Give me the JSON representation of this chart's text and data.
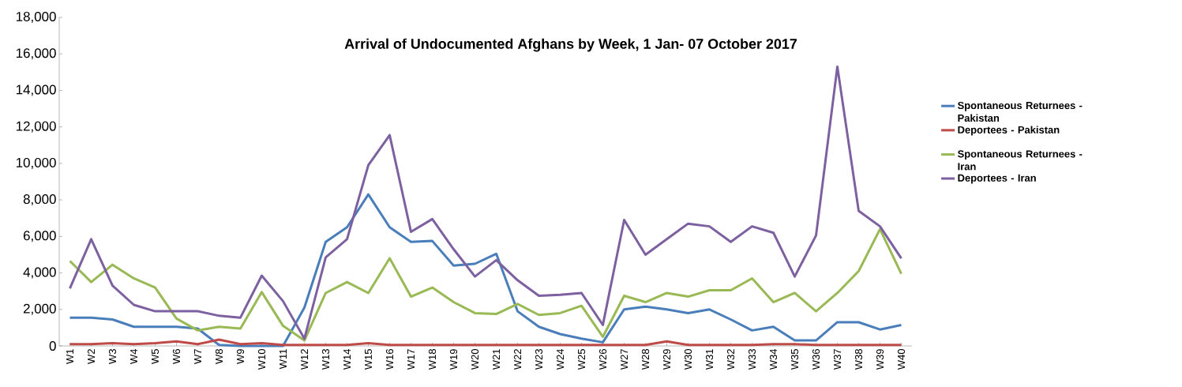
{
  "chart_data": {
    "type": "line",
    "title": "Arrival of Undocumented  Afghans by Week, 1 Jan- 07 October  2017",
    "categories": [
      "W1",
      "W2",
      "W3",
      "W4",
      "W5",
      "W6",
      "W7",
      "W8",
      "W9",
      "W10",
      "W11",
      "W12",
      "W13",
      "W14",
      "W15",
      "W16",
      "W17",
      "W18",
      "W19",
      "W20",
      "W21",
      "W22",
      "W23",
      "W24",
      "W25",
      "W26",
      "W27",
      "W28",
      "W29",
      "W30",
      "W31",
      "W32",
      "W33",
      "W34",
      "W35",
      "W36",
      "W37",
      "W38",
      "W39",
      "W40"
    ],
    "series": [
      {
        "name": "Spontaneous Returnees - Pakistan",
        "color": "#4a7ebb",
        "values": [
          1550,
          1550,
          1450,
          1050,
          1050,
          1050,
          950,
          50,
          0,
          0,
          0,
          2100,
          5700,
          6500,
          8300,
          6500,
          5700,
          5750,
          4400,
          4500,
          5050,
          1900,
          1050,
          650,
          400,
          200,
          2000,
          2150,
          2000,
          1800,
          2000,
          1450,
          850,
          1050,
          300,
          300,
          1300,
          1300,
          900,
          1150
        ]
      },
      {
        "name": "Deportees - Pakistan",
        "color": "#be4b48",
        "values": [
          100,
          100,
          150,
          100,
          150,
          250,
          100,
          350,
          100,
          150,
          50,
          50,
          50,
          50,
          150,
          50,
          50,
          50,
          50,
          50,
          50,
          50,
          50,
          50,
          50,
          50,
          50,
          50,
          250,
          50,
          50,
          50,
          50,
          100,
          100,
          50,
          50,
          50,
          50,
          50
        ]
      },
      {
        "name": "Spontaneous Returnees - Iran",
        "color": "#98b954",
        "values": [
          4650,
          3500,
          4450,
          3700,
          3200,
          1500,
          850,
          1050,
          950,
          2950,
          1100,
          300,
          2900,
          3500,
          2900,
          4800,
          2700,
          3200,
          2400,
          1800,
          1750,
          2300,
          1700,
          1800,
          2200,
          500,
          2750,
          2400,
          2900,
          2700,
          3050,
          3050,
          3700,
          2400,
          2900,
          1900,
          2900,
          4100,
          6400,
          3950
        ]
      },
      {
        "name": "Deportees - Iran",
        "color": "#7d60a0",
        "values": [
          3150,
          5850,
          3300,
          2250,
          1900,
          1900,
          1900,
          1650,
          1550,
          3850,
          2450,
          400,
          4850,
          5850,
          9900,
          11550,
          6250,
          6950,
          5300,
          3800,
          4700,
          3600,
          2750,
          2800,
          2900,
          1150,
          6900,
          5000,
          5850,
          6700,
          6550,
          5700,
          6550,
          6200,
          3800,
          6050,
          15300,
          7400,
          6550,
          4800
        ]
      }
    ],
    "ylim": [
      0,
      18000
    ],
    "yticks": [
      {
        "value": 0,
        "label": "0"
      },
      {
        "value": 2000,
        "label": "2,000"
      },
      {
        "value": 4000,
        "label": "4,000"
      },
      {
        "value": 6000,
        "label": "6,000"
      },
      {
        "value": 8000,
        "label": "8,000"
      },
      {
        "value": 10000,
        "label": "10,000"
      },
      {
        "value": 12000,
        "label": "12,000"
      },
      {
        "value": 14000,
        "label": "14,000"
      },
      {
        "value": 16000,
        "label": "16,000"
      },
      {
        "value": 18000,
        "label": "18,000"
      }
    ],
    "grid": false,
    "legend": "right",
    "marker": "none",
    "line_style": "solid"
  }
}
